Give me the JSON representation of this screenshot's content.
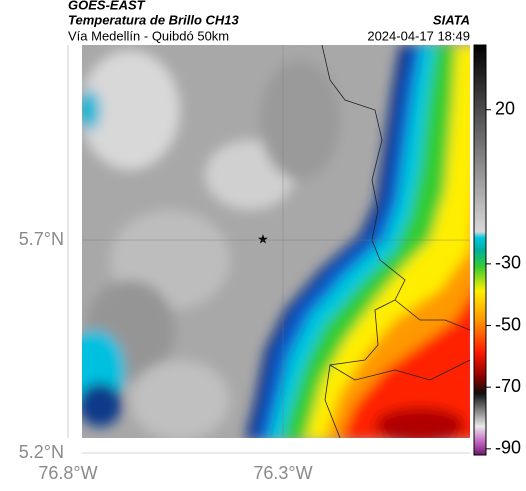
{
  "header": {
    "satellite": "GOES-EAST",
    "product": "Temperatura de Brillo CH13",
    "source": "SIATA",
    "route": "Vía Medellín - Quibdó 50km",
    "datetime": "2024-04-17 18:49"
  },
  "map": {
    "xlim": [
      -76.8,
      -75.865
    ],
    "ylim": [
      5.2,
      6.158
    ],
    "xticks": [
      {
        "value": -76.8,
        "label": "76.8°W"
      },
      {
        "value": -76.3,
        "label": "76.3°W"
      }
    ],
    "yticks": [
      {
        "value": 5.2,
        "label": "5.2°N"
      },
      {
        "value": 5.7,
        "label": "5.7°N"
      }
    ]
  },
  "colorbar": {
    "clim": [
      -92,
      41
    ],
    "ticks": [
      20,
      -30,
      -50,
      -70,
      -90
    ]
  }
}
